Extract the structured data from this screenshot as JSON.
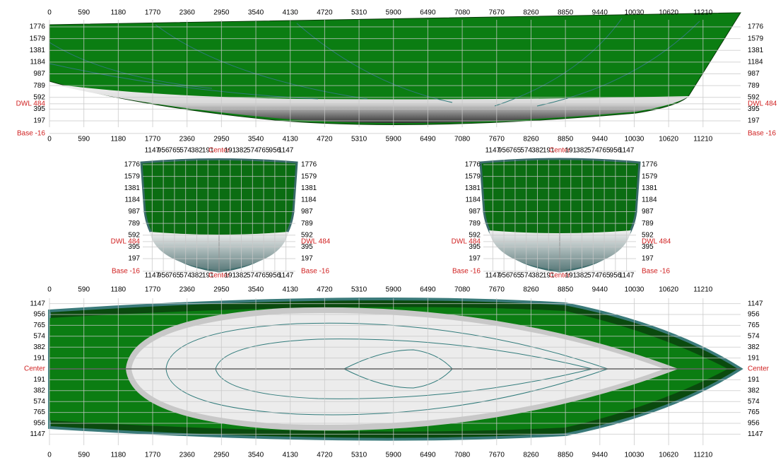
{
  "profile_view": {
    "x_ticks": [
      0,
      590,
      1180,
      1770,
      2360,
      2950,
      3540,
      4130,
      4720,
      5310,
      5900,
      6490,
      7080,
      7670,
      8260,
      8850,
      9440,
      10030,
      10620,
      11210
    ],
    "height_ticks": [
      1776,
      1579,
      1381,
      1184,
      987,
      789,
      592,
      {
        "value": 484,
        "label": "DWL 484"
      },
      395,
      197,
      {
        "value": -16,
        "label": "Base -16"
      }
    ]
  },
  "body_plan": {
    "breadth_ticks": [
      {
        "value": -1147,
        "label": "1147"
      },
      {
        "value": -956,
        "label": "956"
      },
      {
        "value": -765,
        "label": "765"
      },
      {
        "value": -574,
        "label": "574"
      },
      {
        "value": -382,
        "label": "382"
      },
      {
        "value": -191,
        "label": "191"
      },
      {
        "value": 0,
        "label": "Center"
      },
      191,
      382,
      574,
      765,
      956,
      1147
    ],
    "height_ticks": [
      1776,
      1579,
      1381,
      1184,
      987,
      789,
      592,
      {
        "value": 484,
        "label": "DWL 484"
      },
      395,
      197,
      {
        "value": -16,
        "label": "Base -16"
      }
    ]
  },
  "plan_view": {
    "x_ticks": [
      0,
      590,
      1180,
      1770,
      2360,
      2950,
      3540,
      4130,
      4720,
      5310,
      5900,
      6490,
      7080,
      7670,
      8260,
      8850,
      9440,
      10030,
      10620,
      11210
    ],
    "breadth_ticks": [
      1147,
      956,
      765,
      574,
      382,
      191,
      {
        "value": 0,
        "label": "Center"
      },
      {
        "value": -191,
        "label": "191"
      },
      {
        "value": -382,
        "label": "382"
      },
      {
        "value": -574,
        "label": "574"
      },
      {
        "value": -765,
        "label": "765"
      },
      {
        "value": -956,
        "label": "956"
      },
      {
        "value": -1147,
        "label": "1147"
      }
    ]
  }
}
